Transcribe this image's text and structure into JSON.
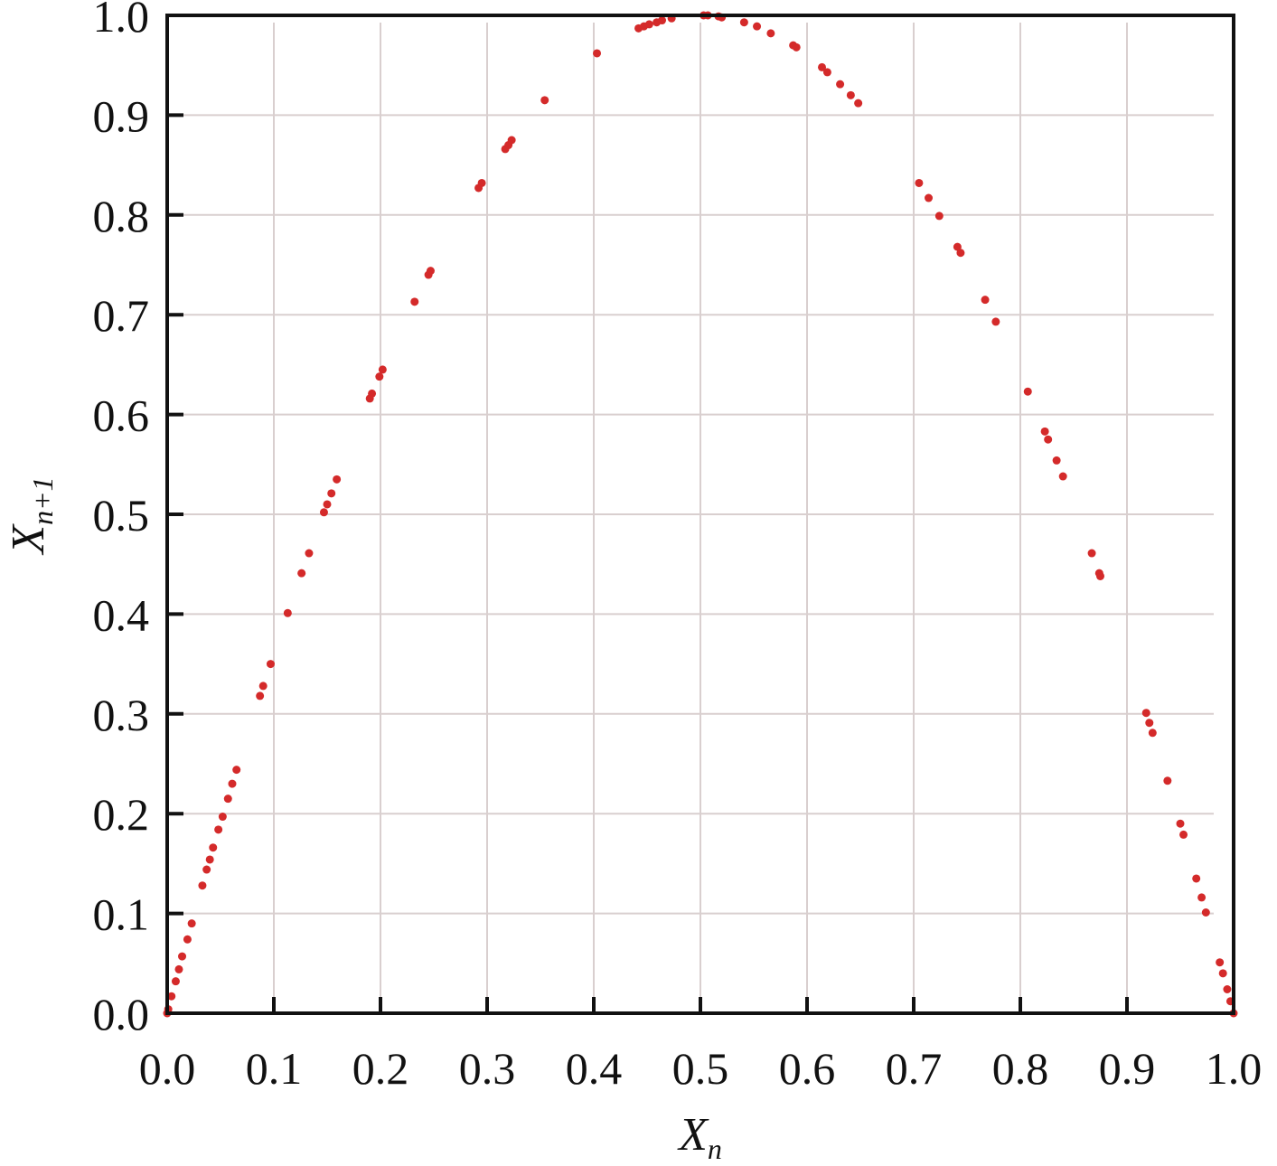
{
  "chart_data": {
    "type": "scatter",
    "title": "",
    "xlabel": "X",
    "xlabel_sub": "n",
    "ylabel": "X",
    "ylabel_sub": "n+1",
    "xlim": [
      0,
      1
    ],
    "ylim": [
      0,
      1
    ],
    "grid": true,
    "point_color": "#d42a2a",
    "grid_color": "#d9cfcf",
    "xticks": [
      "0.0",
      "0.1",
      "0.2",
      "0.3",
      "0.4",
      "0.5",
      "0.6",
      "0.7",
      "0.8",
      "0.9",
      "1.0"
    ],
    "yticks": [
      "0.0",
      "0.1",
      "0.2",
      "0.3",
      "0.4",
      "0.5",
      "0.6",
      "0.7",
      "0.8",
      "0.9",
      "1.0"
    ],
    "x": [
      0.0,
      0.001,
      0.004,
      0.008,
      0.011,
      0.014,
      0.019,
      0.023,
      0.033,
      0.037,
      0.04,
      0.043,
      0.048,
      0.052,
      0.057,
      0.061,
      0.065,
      0.087,
      0.09,
      0.097,
      0.113,
      0.126,
      0.133,
      0.147,
      0.15,
      0.154,
      0.159,
      0.19,
      0.192,
      0.199,
      0.202,
      0.232,
      0.245,
      0.247,
      0.292,
      0.295,
      0.317,
      0.32,
      0.323,
      0.354,
      0.403,
      0.442,
      0.447,
      0.452,
      0.459,
      0.464,
      0.473,
      0.503,
      0.507,
      0.517,
      0.52,
      0.541,
      0.553,
      0.566,
      0.587,
      0.59,
      0.614,
      0.619,
      0.631,
      0.641,
      0.648,
      0.705,
      0.714,
      0.724,
      0.741,
      0.744,
      0.767,
      0.777,
      0.807,
      0.823,
      0.826,
      0.834,
      0.84,
      0.867,
      0.874,
      0.875,
      0.918,
      0.921,
      0.924,
      0.938,
      0.95,
      0.953,
      0.965,
      0.97,
      0.974,
      0.987,
      0.99,
      0.994,
      0.997,
      1.0
    ],
    "y": [
      0.0,
      0.004,
      0.017,
      0.032,
      0.044,
      0.057,
      0.074,
      0.09,
      0.128,
      0.144,
      0.154,
      0.166,
      0.184,
      0.197,
      0.215,
      0.23,
      0.244,
      0.318,
      0.328,
      0.35,
      0.401,
      0.441,
      0.461,
      0.502,
      0.51,
      0.521,
      0.535,
      0.616,
      0.621,
      0.638,
      0.645,
      0.713,
      0.74,
      0.744,
      0.827,
      0.832,
      0.866,
      0.87,
      0.875,
      0.915,
      0.962,
      0.987,
      0.989,
      0.991,
      0.993,
      0.995,
      0.997,
      1.0,
      1.0,
      0.999,
      0.998,
      0.993,
      0.989,
      0.982,
      0.97,
      0.968,
      0.948,
      0.943,
      0.931,
      0.92,
      0.912,
      0.832,
      0.817,
      0.799,
      0.768,
      0.762,
      0.715,
      0.693,
      0.623,
      0.583,
      0.575,
      0.554,
      0.538,
      0.461,
      0.441,
      0.438,
      0.301,
      0.291,
      0.281,
      0.233,
      0.19,
      0.179,
      0.135,
      0.116,
      0.101,
      0.051,
      0.04,
      0.024,
      0.012,
      0.0
    ]
  }
}
